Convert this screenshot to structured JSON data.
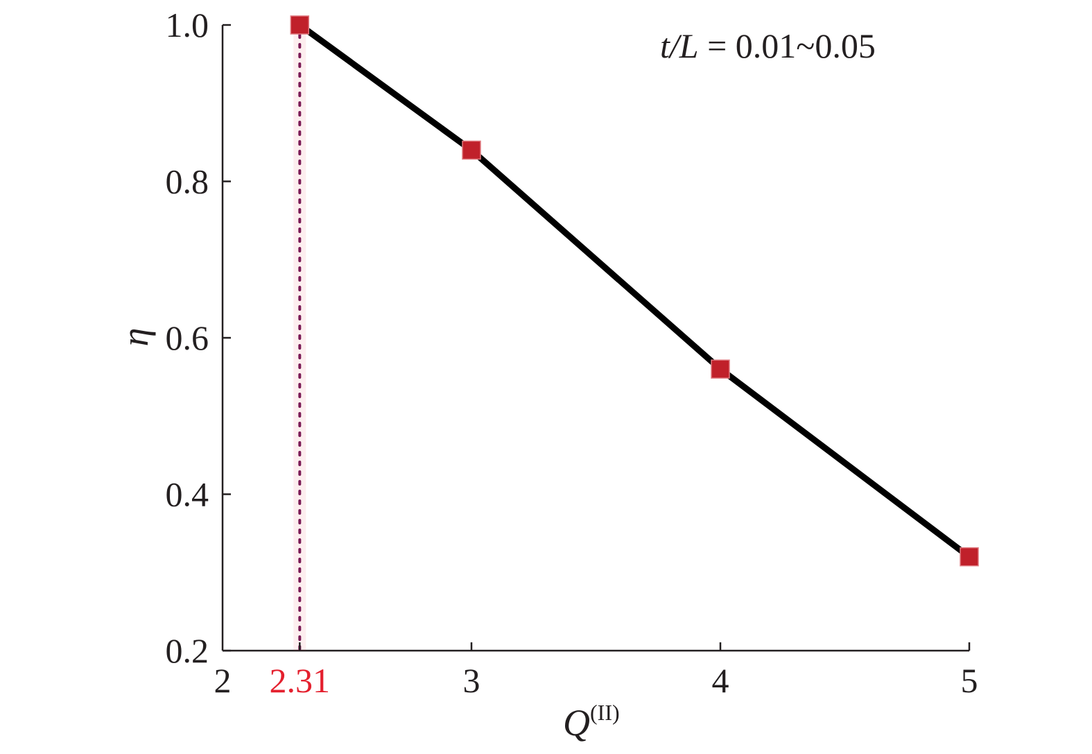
{
  "chart_data": {
    "type": "line",
    "title": "",
    "xlabel": "Q",
    "xlabel_superscript": "(II)",
    "ylabel": "η",
    "xlim": [
      2,
      5
    ],
    "ylim": [
      0.2,
      1.0
    ],
    "x_ticks": [
      "2",
      "3",
      "4",
      "5"
    ],
    "y_ticks": [
      "0.2",
      "0.4",
      "0.6",
      "0.8",
      "1.0"
    ],
    "grid": false,
    "legend": "none",
    "annotation": {
      "italic_part": "t/L",
      "rest": " = 0.01~0.05"
    },
    "marker_line": {
      "x": 2.31,
      "label": "2.31",
      "color": "#e4202e"
    },
    "series": [
      {
        "x": [
          2.31,
          3,
          4,
          5
        ],
        "values": [
          1.0,
          0.84,
          0.56,
          0.32
        ],
        "line_color": "#000000",
        "marker": "square",
        "marker_color": "#c0202a"
      }
    ],
    "colors": {
      "axis": "#231f20",
      "line": "#000000",
      "marker": "#c0202a",
      "highlight": "#e4202e"
    }
  }
}
